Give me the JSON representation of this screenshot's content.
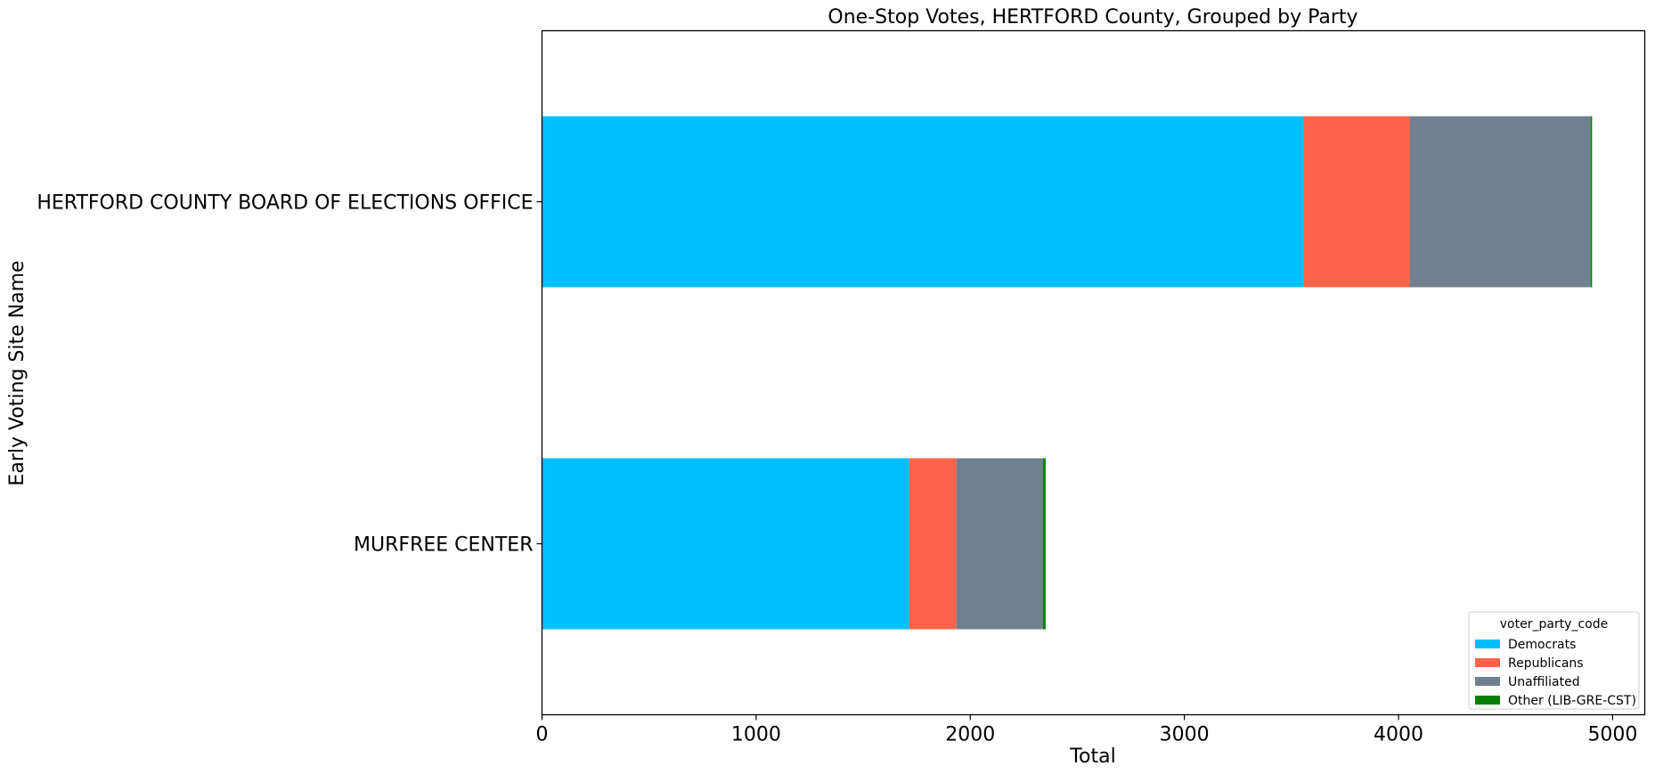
{
  "chart_data": {
    "type": "bar",
    "orientation": "horizontal",
    "stacked": true,
    "title": "One-Stop Votes, HERTFORD County, Grouped by Party",
    "xlabel": "Total",
    "ylabel": "Early Voting Site Name",
    "xlim": [
      0,
      5150
    ],
    "xticks": [
      0,
      1000,
      2000,
      3000,
      4000,
      5000
    ],
    "categories": [
      "HERTFORD COUNTY BOARD OF ELECTIONS OFFICE",
      "MURFREE CENTER"
    ],
    "series": [
      {
        "name": "Democrats",
        "color": "#00bfff",
        "values": [
          3557,
          1715
        ]
      },
      {
        "name": "Republicans",
        "color": "#ff6347",
        "values": [
          495,
          220
        ]
      },
      {
        "name": "Unaffiliated",
        "color": "#708090",
        "values": [
          845,
          405
        ]
      },
      {
        "name": "Other (LIB-GRE-CST)",
        "color": "#008000",
        "values": [
          7,
          12
        ]
      }
    ],
    "legend": {
      "title": "voter_party_code",
      "placement": "lower right"
    },
    "grid": false
  }
}
